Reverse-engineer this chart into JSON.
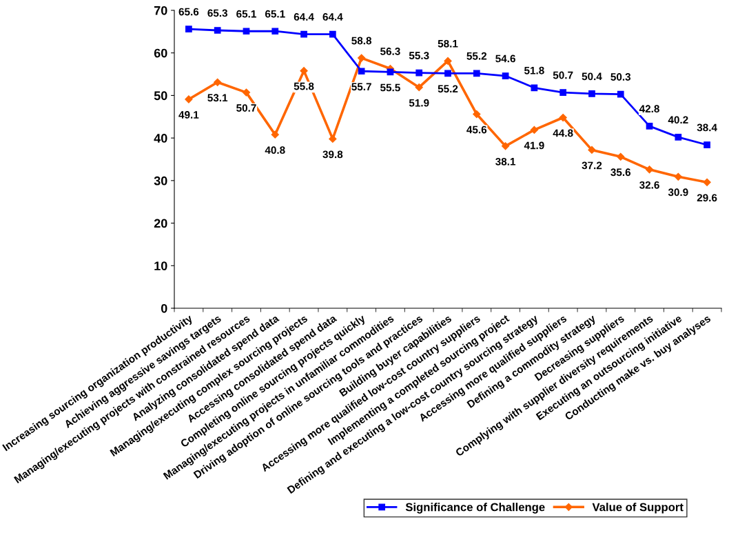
{
  "chart_data": {
    "type": "line",
    "categories": [
      "Increasing sourcing organization productivity",
      "Achieving aggressive savings targets",
      "Managing/executing projects with constrained resources",
      "Analyzing consolidated spend data",
      "Managing/executing complex sourcing projects",
      "Accessing consolidated spend data",
      "Completing online sourcing projects quickly",
      "Managing/executing projects in unfamiliar commodities",
      "Driving adoption of online sourcing tools and practices",
      "Building buyer capabilities",
      "Accessing more qualified low-cost country suppliers",
      "Implementing a completed sourcing project",
      "Defining and executing a low-cost country sourcing strategy",
      "Accessing more qualified suppliers",
      "Defining a commodity strategy",
      "Decreasing suppliers",
      "Complying with supplier diversity requirements",
      "Executing an outsourcing initiative",
      "Conducting make vs. buy analyses"
    ],
    "series": [
      {
        "name": "Significance of Challenge",
        "color": "#0000ff",
        "marker": "square",
        "values": [
          65.6,
          65.3,
          65.1,
          65.1,
          64.4,
          64.4,
          55.7,
          55.5,
          55.3,
          55.2,
          55.2,
          54.6,
          51.8,
          50.7,
          50.4,
          50.3,
          42.8,
          40.2,
          38.4
        ]
      },
      {
        "name": "Value of Support",
        "color": "#ff6600",
        "marker": "diamond",
        "values": [
          49.1,
          53.1,
          50.7,
          40.8,
          55.8,
          39.8,
          58.8,
          56.3,
          51.9,
          58.1,
          45.6,
          38.1,
          41.9,
          44.8,
          37.2,
          35.6,
          32.6,
          30.9,
          29.6
        ]
      }
    ],
    "ylim": [
      0,
      70
    ],
    "yticks": [
      0,
      10,
      20,
      30,
      40,
      50,
      60,
      70
    ],
    "data_labels": true,
    "grid": false,
    "legend": "bottom",
    "line_style": "solid"
  }
}
